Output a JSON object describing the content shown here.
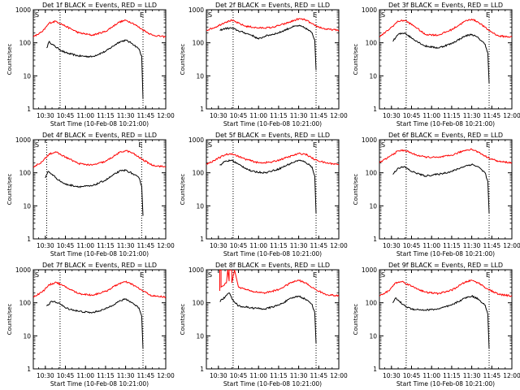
{
  "colors": {
    "events": "#000000",
    "lld": "#ff0000",
    "axis": "#000000",
    "background": "#ffffff"
  },
  "chart_data": [
    {
      "type": "line",
      "title": "Det 1f BLACK = Events, RED = LLD",
      "xlabel": "Start Time (10-Feb-08 10:21:00)",
      "ylabel": "Counts/sec",
      "yscale": "log",
      "ylim": [
        1,
        1000
      ],
      "xlim": [
        "10:21",
        "12:00"
      ],
      "x_ticks": [
        "10:30",
        "10:45",
        "11:00",
        "11:15",
        "11:30",
        "11:45",
        "12:00"
      ],
      "y_ticks": [
        "1",
        "10",
        "100",
        "1000"
      ],
      "markers": [
        "S",
        "E"
      ],
      "vlines": [
        "10:41",
        "11:43"
      ],
      "series": [
        {
          "name": "Events",
          "x": [
            "10:31",
            "10:33",
            "10:35",
            "10:40",
            "10:45",
            "10:55",
            "11:05",
            "11:15",
            "11:25",
            "11:30",
            "11:35",
            "11:40",
            "11:42",
            "11:43"
          ],
          "y": [
            70,
            110,
            90,
            65,
            50,
            40,
            38,
            55,
            105,
            120,
            95,
            65,
            40,
            2
          ]
        },
        {
          "name": "LLD",
          "x": [
            "10:21",
            "10:28",
            "10:33",
            "10:38",
            "10:45",
            "10:55",
            "11:05",
            "11:15",
            "11:25",
            "11:30",
            "11:35",
            "11:42",
            "11:50",
            "12:00"
          ],
          "y": [
            150,
            220,
            400,
            450,
            320,
            200,
            170,
            220,
            420,
            480,
            400,
            260,
            170,
            150
          ]
        }
      ]
    },
    {
      "type": "line",
      "title": "Det 2f BLACK = Events, RED = LLD",
      "xlabel": "Start Time (10-Feb-08 10:21:00)",
      "ylabel": "Counts/sec",
      "yscale": "log",
      "ylim": [
        1,
        1000
      ],
      "xlim": [
        "10:21",
        "12:00"
      ],
      "x_ticks": [
        "10:30",
        "10:45",
        "11:00",
        "11:15",
        "11:30",
        "11:45",
        "12:00"
      ],
      "y_ticks": [
        "1",
        "10",
        "100",
        "1000"
      ],
      "markers": [
        "S",
        "E"
      ],
      "vlines": [
        "10:41",
        "11:43"
      ],
      "series": [
        {
          "name": "Events",
          "x": [
            "10:31",
            "10:35",
            "10:40",
            "10:45",
            "10:55",
            "11:00",
            "11:05",
            "11:15",
            "11:25",
            "11:30",
            "11:35",
            "11:40",
            "11:42",
            "11:43"
          ],
          "y": [
            240,
            270,
            280,
            230,
            170,
            130,
            160,
            200,
            300,
            330,
            280,
            200,
            120,
            15
          ]
        },
        {
          "name": "LLD",
          "x": [
            "10:21",
            "10:28",
            "10:35",
            "10:40",
            "10:50",
            "11:00",
            "11:10",
            "11:20",
            "11:30",
            "11:35",
            "11:42",
            "11:50",
            "12:00"
          ],
          "y": [
            240,
            300,
            420,
            480,
            320,
            280,
            290,
            380,
            530,
            500,
            330,
            260,
            240
          ]
        }
      ]
    },
    {
      "type": "line",
      "title": "Det 3f BLACK = Events, RED = LLD",
      "xlabel": "Start Time (10-Feb-08 10:21:00)",
      "ylabel": "Counts/sec",
      "yscale": "log",
      "ylim": [
        1,
        1000
      ],
      "xlim": [
        "10:21",
        "12:00"
      ],
      "x_ticks": [
        "10:30",
        "10:45",
        "11:00",
        "11:15",
        "11:30",
        "11:45",
        "12:00"
      ],
      "y_ticks": [
        "1",
        "10",
        "100",
        "1000"
      ],
      "markers": [
        "S",
        "E"
      ],
      "vlines": [
        "10:41",
        "11:43"
      ],
      "series": [
        {
          "name": "Events",
          "x": [
            "10:31",
            "10:35",
            "10:40",
            "10:45",
            "10:55",
            "11:05",
            "11:15",
            "11:25",
            "11:30",
            "11:35",
            "11:40",
            "11:42",
            "11:43"
          ],
          "y": [
            110,
            180,
            200,
            140,
            80,
            70,
            95,
            160,
            180,
            140,
            90,
            50,
            6
          ]
        },
        {
          "name": "LLD",
          "x": [
            "10:21",
            "10:28",
            "10:35",
            "10:40",
            "10:48",
            "10:55",
            "11:05",
            "11:15",
            "11:25",
            "11:30",
            "11:35",
            "11:42",
            "11:50",
            "12:00"
          ],
          "y": [
            150,
            250,
            450,
            480,
            300,
            180,
            170,
            250,
            450,
            520,
            420,
            250,
            160,
            150
          ]
        }
      ]
    },
    {
      "type": "line",
      "title": "Det 4f BLACK = Events, RED = LLD",
      "xlabel": "Start Time (10-Feb-08 10:21:00)",
      "ylabel": "Counts/sec",
      "yscale": "log",
      "ylim": [
        1,
        1000
      ],
      "xlim": [
        "10:21",
        "12:00"
      ],
      "x_ticks": [
        "10:30",
        "10:45",
        "11:00",
        "11:15",
        "11:30",
        "11:45",
        "12:00"
      ],
      "y_ticks": [
        "1",
        "10",
        "100",
        "1000"
      ],
      "markers": [
        "S",
        "E"
      ],
      "vlines": [
        "10:31",
        "11:42"
      ],
      "series": [
        {
          "name": "Events",
          "x": [
            "10:30",
            "10:32",
            "10:35",
            "10:40",
            "10:45",
            "10:55",
            "11:05",
            "11:15",
            "11:25",
            "11:30",
            "11:35",
            "11:40",
            "11:42",
            "11:43"
          ],
          "y": [
            70,
            110,
            90,
            60,
            45,
            38,
            40,
            60,
            110,
            120,
            95,
            70,
            40,
            5
          ]
        },
        {
          "name": "LLD",
          "x": [
            "10:21",
            "10:28",
            "10:33",
            "10:38",
            "10:45",
            "10:55",
            "11:05",
            "11:15",
            "11:25",
            "11:30",
            "11:35",
            "11:42",
            "11:50",
            "12:00"
          ],
          "y": [
            150,
            220,
            380,
            420,
            300,
            190,
            170,
            220,
            400,
            470,
            400,
            260,
            170,
            150
          ]
        }
      ]
    },
    {
      "type": "line",
      "title": "Det 5f BLACK = Events, RED = LLD",
      "xlabel": "Start Time (10-Feb-08 10:21:00)",
      "ylabel": "Counts/sec",
      "yscale": "log",
      "ylim": [
        1,
        1000
      ],
      "xlim": [
        "10:21",
        "12:00"
      ],
      "x_ticks": [
        "10:30",
        "10:45",
        "11:00",
        "11:15",
        "11:30",
        "11:45",
        "12:00"
      ],
      "y_ticks": [
        "1",
        "10",
        "100",
        "1000"
      ],
      "markers": [
        "S",
        "E"
      ],
      "vlines": [
        "10:41",
        "11:43"
      ],
      "series": [
        {
          "name": "Events",
          "x": [
            "10:31",
            "10:35",
            "10:40",
            "10:45",
            "10:55",
            "11:05",
            "11:15",
            "11:25",
            "11:30",
            "11:35",
            "11:40",
            "11:42",
            "11:43"
          ],
          "y": [
            170,
            220,
            240,
            180,
            110,
            100,
            130,
            200,
            240,
            210,
            150,
            80,
            6
          ]
        },
        {
          "name": "LLD",
          "x": [
            "10:21",
            "10:28",
            "10:35",
            "10:40",
            "10:50",
            "11:00",
            "11:10",
            "11:20",
            "11:30",
            "11:35",
            "11:42",
            "11:50",
            "12:00"
          ],
          "y": [
            180,
            250,
            350,
            380,
            260,
            200,
            210,
            280,
            380,
            370,
            250,
            200,
            180
          ]
        }
      ]
    },
    {
      "type": "line",
      "title": "Det 6f BLACK = Events, RED = LLD",
      "xlabel": "Start Time (10-Feb-08 10:21:00)",
      "ylabel": "Counts/sec",
      "yscale": "log",
      "ylim": [
        1,
        1000
      ],
      "xlim": [
        "10:21",
        "12:00"
      ],
      "x_ticks": [
        "10:30",
        "10:45",
        "11:00",
        "11:15",
        "11:30",
        "11:45",
        "12:00"
      ],
      "y_ticks": [
        "1",
        "10",
        "100",
        "1000"
      ],
      "markers": [
        "S",
        "E"
      ],
      "vlines": [
        "10:41",
        "11:43"
      ],
      "series": [
        {
          "name": "Events",
          "x": [
            "10:31",
            "10:35",
            "10:40",
            "10:45",
            "10:55",
            "11:05",
            "11:15",
            "11:25",
            "11:30",
            "11:35",
            "11:40",
            "11:42",
            "11:43"
          ],
          "y": [
            90,
            140,
            150,
            110,
            80,
            90,
            110,
            160,
            180,
            150,
            100,
            55,
            6
          ]
        },
        {
          "name": "LLD",
          "x": [
            "10:21",
            "10:28",
            "10:35",
            "10:40",
            "10:48",
            "10:55",
            "11:05",
            "11:15",
            "11:25",
            "11:30",
            "11:35",
            "11:42",
            "11:50",
            "12:00"
          ],
          "y": [
            200,
            300,
            460,
            480,
            350,
            300,
            290,
            340,
            480,
            520,
            420,
            290,
            220,
            200
          ]
        }
      ]
    },
    {
      "type": "line",
      "title": "Det 7f BLACK = Events, RED = LLD",
      "xlabel": "Start Time (10-Feb-08 10:21:00)",
      "ylabel": "Counts/sec",
      "yscale": "log",
      "ylim": [
        1,
        1000
      ],
      "xlim": [
        "10:21",
        "12:00"
      ],
      "x_ticks": [
        "10:30",
        "10:45",
        "11:00",
        "11:15",
        "11:30",
        "11:45",
        "12:00"
      ],
      "y_ticks": [
        "1",
        "10",
        "100",
        "1000"
      ],
      "markers": [
        "S",
        "E"
      ],
      "vlines": [
        "10:41",
        "11:43"
      ],
      "series": [
        {
          "name": "Events",
          "x": [
            "10:31",
            "10:35",
            "10:40",
            "10:45",
            "10:55",
            "11:05",
            "11:15",
            "11:25",
            "11:30",
            "11:35",
            "11:40",
            "11:42",
            "11:43"
          ],
          "y": [
            80,
            110,
            100,
            70,
            55,
            50,
            65,
            110,
            130,
            100,
            70,
            40,
            4
          ]
        },
        {
          "name": "LLD",
          "x": [
            "10:21",
            "10:28",
            "10:33",
            "10:38",
            "10:45",
            "10:55",
            "11:05",
            "11:15",
            "11:25",
            "11:30",
            "11:35",
            "11:42",
            "11:50",
            "12:00"
          ],
          "y": [
            150,
            220,
            350,
            420,
            300,
            190,
            170,
            220,
            380,
            430,
            360,
            240,
            160,
            150
          ]
        }
      ]
    },
    {
      "type": "line",
      "title": "Det 8f BLACK = Events, RED = LLD",
      "xlabel": "Start Time (10-Feb-08 10:21:00)",
      "ylabel": "Counts/sec",
      "yscale": "log",
      "ylim": [
        1,
        1000
      ],
      "xlim": [
        "10:21",
        "12:00"
      ],
      "x_ticks": [
        "10:30",
        "10:45",
        "11:00",
        "11:15",
        "11:30",
        "11:45",
        "12:00"
      ],
      "y_ticks": [
        "1",
        "10",
        "100",
        "1000"
      ],
      "markers": [
        "S",
        "E"
      ],
      "vlines": [
        "10:41",
        "11:43"
      ],
      "series": [
        {
          "name": "Events",
          "x": [
            "10:31",
            "10:35",
            "10:38",
            "10:41",
            "10:45",
            "10:55",
            "11:05",
            "11:15",
            "11:25",
            "11:30",
            "11:35",
            "11:40",
            "11:42",
            "11:43"
          ],
          "y": [
            110,
            150,
            200,
            120,
            80,
            70,
            65,
            85,
            140,
            160,
            130,
            90,
            50,
            6
          ]
        },
        {
          "name": "LLD",
          "x": [
            "10:31",
            "10:31",
            "10:32",
            "10:32",
            "10:36",
            "10:37",
            "10:37",
            "10:38",
            "10:38",
            "10:40",
            "10:40",
            "10:42",
            "10:42",
            "10:45",
            "10:55",
            "11:05",
            "11:15",
            "11:25",
            "11:30",
            "11:35",
            "11:42",
            "11:50",
            "12:00"
          ],
          "y": [
            230,
            1000,
            1000,
            300,
            400,
            1000,
            1000,
            450,
            1000,
            1000,
            400,
            1000,
            1000,
            300,
            220,
            200,
            250,
            420,
            480,
            400,
            260,
            180,
            160
          ]
        }
      ]
    },
    {
      "type": "line",
      "title": "Det 9f BLACK = Events, RED = LLD",
      "xlabel": "Start Time (10-Feb-08 10:21:00)",
      "ylabel": "Counts/sec",
      "yscale": "log",
      "ylim": [
        1,
        1000
      ],
      "xlim": [
        "10:21",
        "12:00"
      ],
      "x_ticks": [
        "10:30",
        "10:45",
        "11:00",
        "11:15",
        "11:30",
        "11:45",
        "12:00"
      ],
      "y_ticks": [
        "1",
        "10",
        "100",
        "1000"
      ],
      "markers": [
        "S",
        "E"
      ],
      "vlines": [
        "10:41",
        "11:43"
      ],
      "series": [
        {
          "name": "Events",
          "x": [
            "10:31",
            "10:33",
            "10:36",
            "10:40",
            "10:45",
            "10:55",
            "11:05",
            "11:15",
            "11:25",
            "11:30",
            "11:35",
            "11:40",
            "11:42",
            "11:43"
          ],
          "y": [
            100,
            140,
            110,
            80,
            65,
            60,
            65,
            85,
            140,
            160,
            130,
            85,
            45,
            4
          ]
        },
        {
          "name": "LLD",
          "x": [
            "10:21",
            "10:28",
            "10:33",
            "10:38",
            "10:45",
            "10:55",
            "11:05",
            "11:15",
            "11:25",
            "11:30",
            "11:35",
            "11:42",
            "11:50",
            "12:00"
          ],
          "y": [
            160,
            230,
            400,
            440,
            320,
            210,
            190,
            240,
            420,
            480,
            400,
            260,
            180,
            160
          ]
        }
      ]
    }
  ]
}
